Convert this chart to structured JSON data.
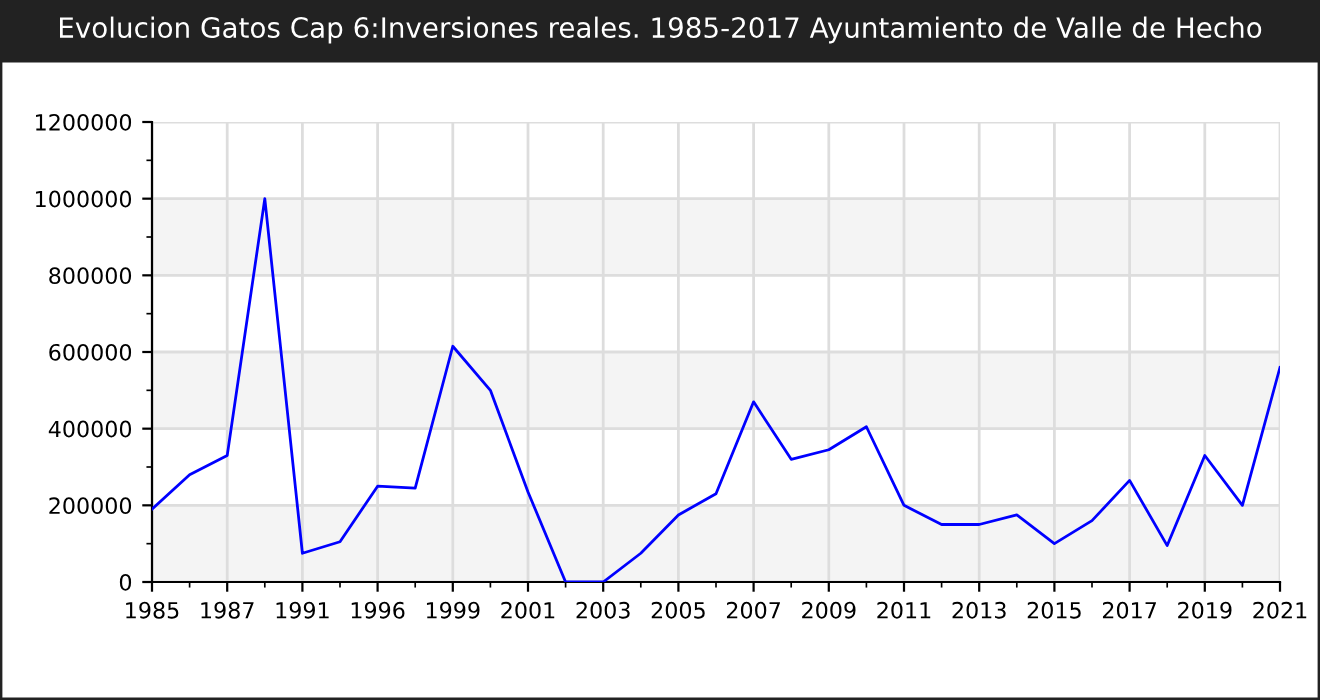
{
  "chart_data": {
    "type": "line",
    "title": "Evolucion Gatos Cap 6:Inversiones reales. 1985-2017 Ayuntamiento de Valle de Hecho",
    "categories": [
      "1985",
      null,
      "1987",
      null,
      "1991",
      null,
      "1996",
      null,
      "1999",
      null,
      "2001",
      null,
      "2003",
      null,
      "2005",
      null,
      "2007",
      null,
      "2009",
      null,
      "2011",
      null,
      "2013",
      null,
      "2015",
      null,
      "2017",
      null,
      "2019",
      null,
      "2021"
    ],
    "series": [
      {
        "color": "#0000ff",
        "values": [
          190000,
          280000,
          330000,
          1000000,
          75000,
          105000,
          250000,
          245000,
          615000,
          500000,
          235000,
          0,
          0,
          75000,
          175000,
          230000,
          470000,
          320000,
          345000,
          405000,
          200000,
          150000,
          150000,
          175000,
          100000,
          160000,
          265000,
          95000,
          330000,
          200000,
          560000
        ]
      }
    ],
    "ylim": [
      0,
      1200000
    ],
    "yticks": [
      0,
      200000,
      400000,
      600000,
      800000,
      1000000,
      1200000
    ],
    "grid": true,
    "legend": false,
    "marker": "none",
    "line_style": "solid",
    "bands": [
      {
        "axis": "y",
        "from": 0,
        "to": 200000,
        "color": "#f4f4f4"
      },
      {
        "axis": "y",
        "from": 400000,
        "to": 600000,
        "color": "#f4f4f4"
      },
      {
        "axis": "y",
        "from": 800000,
        "to": 1000000,
        "color": "#f4f4f4"
      }
    ]
  }
}
